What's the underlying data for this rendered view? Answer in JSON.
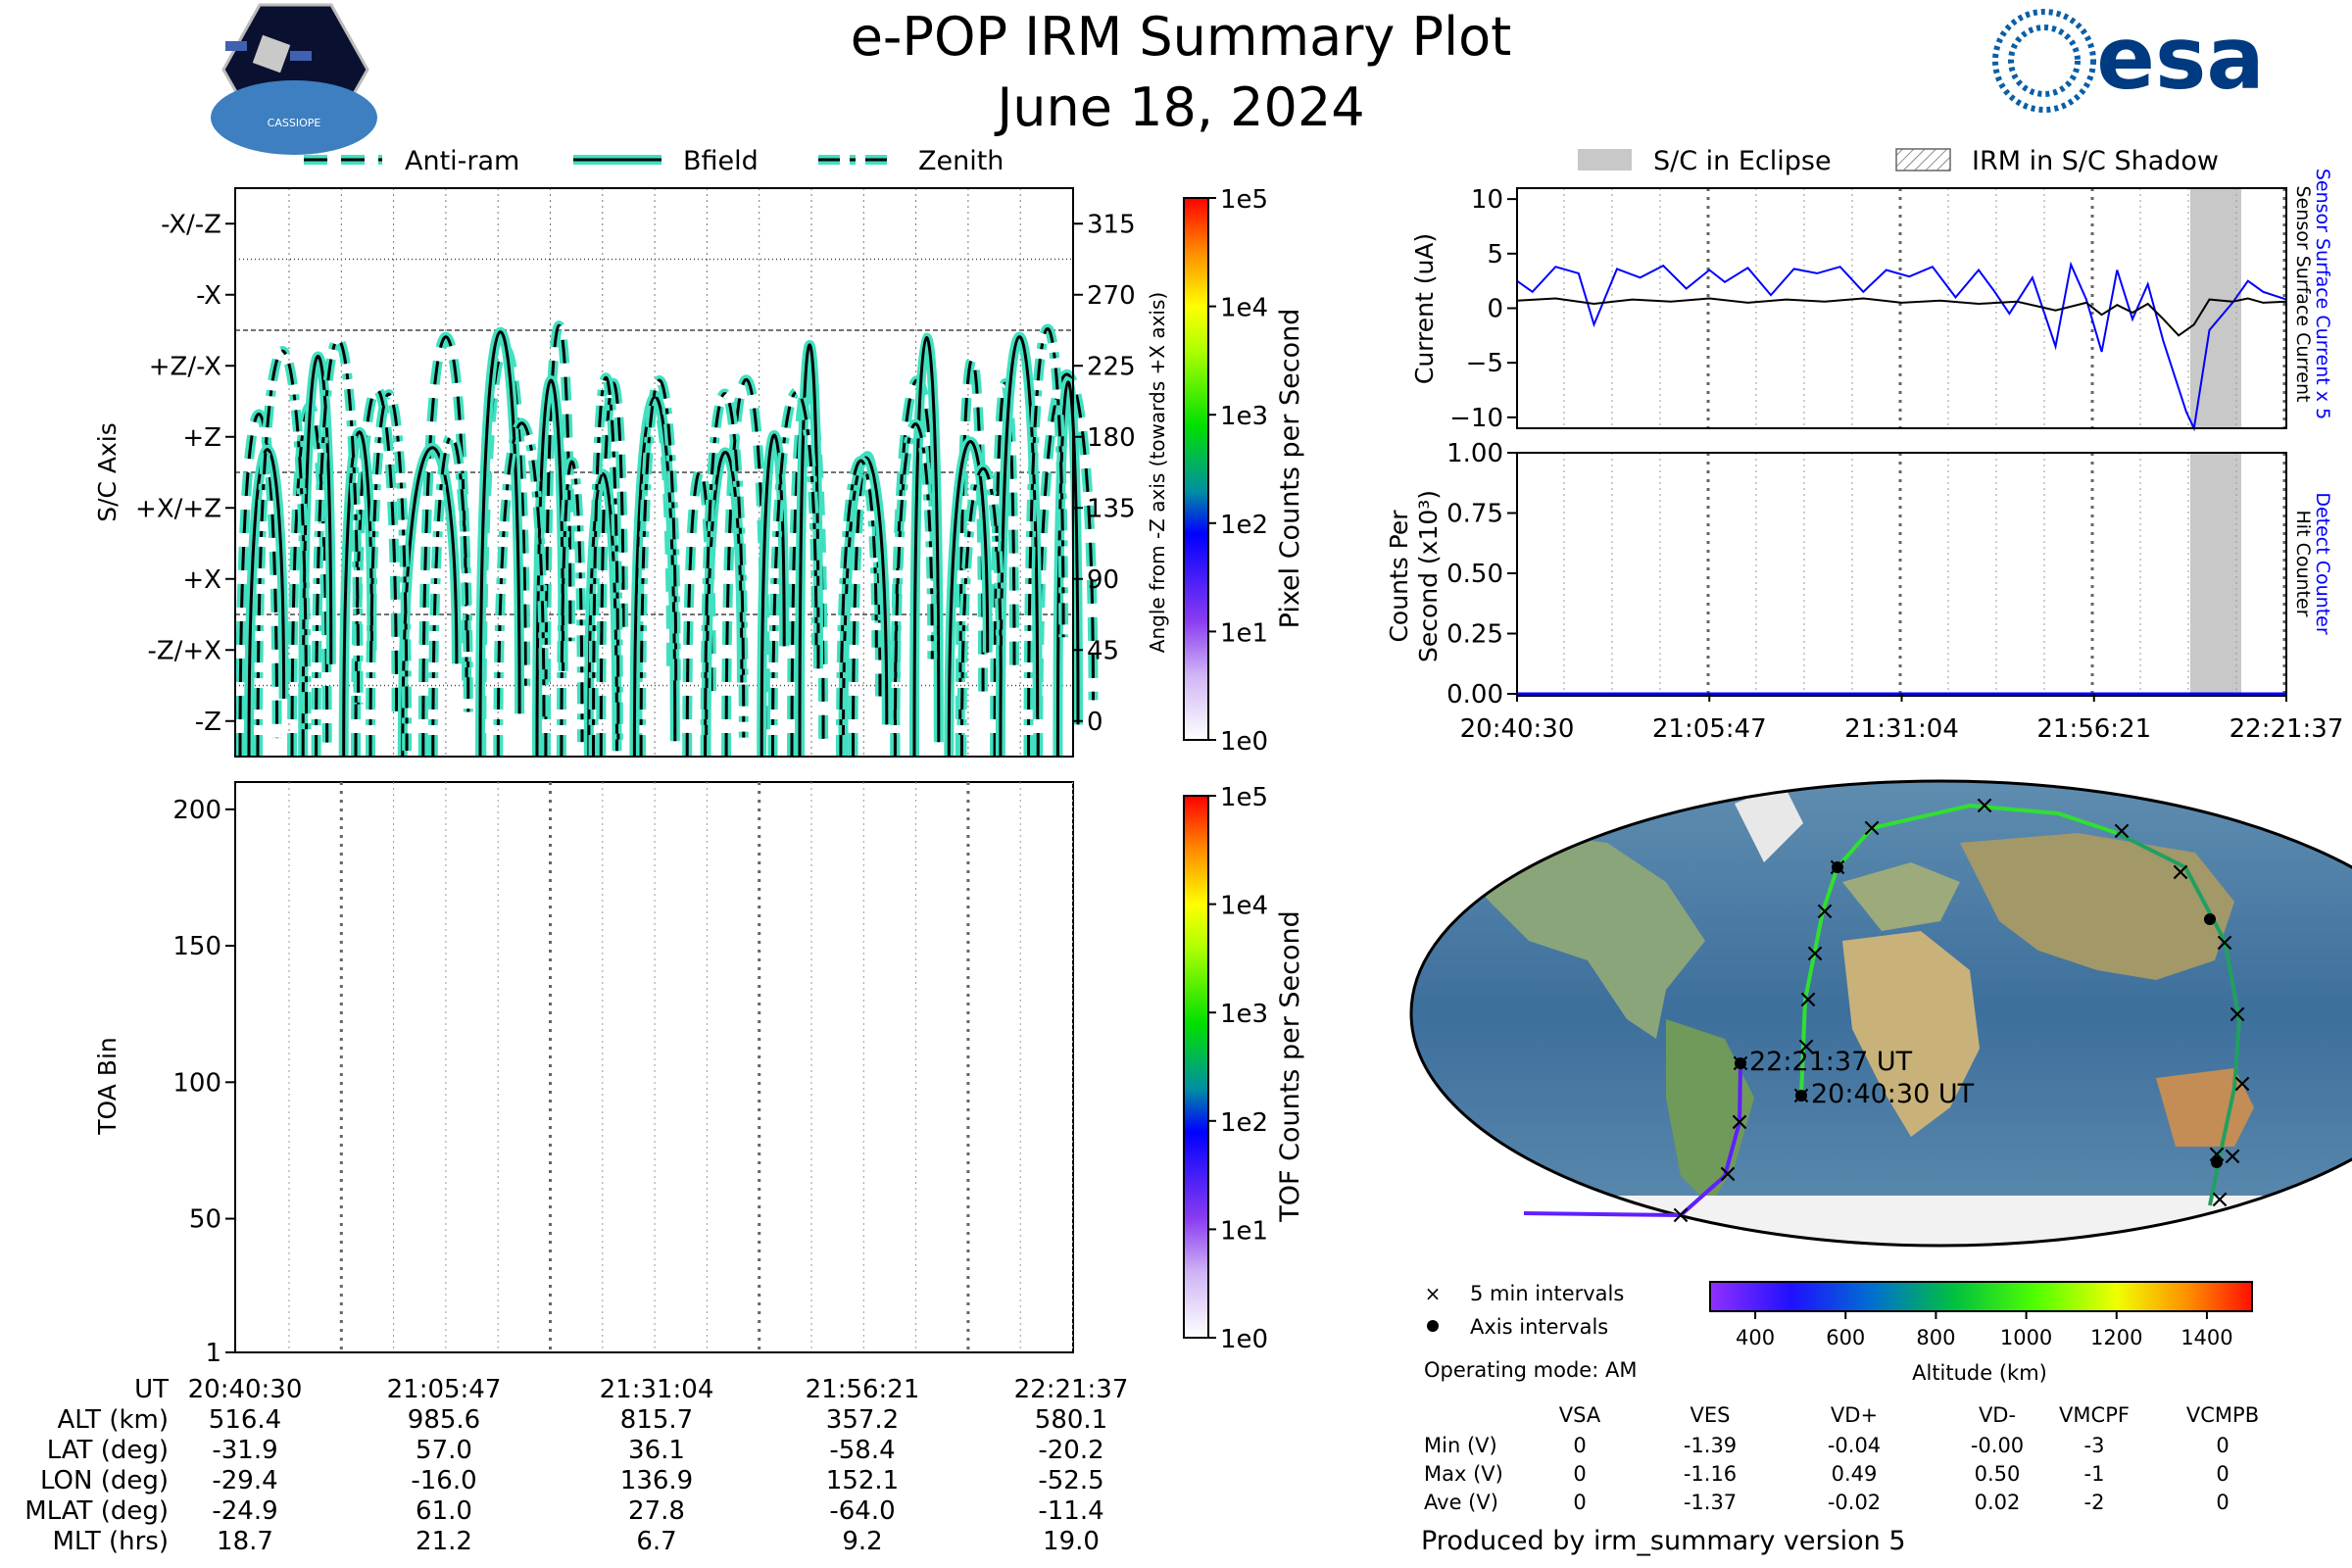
{
  "header": {
    "title": "e-POP IRM Summary Plot",
    "date": "June 18, 2024",
    "left_logo_text": "CASSIOPE",
    "right_logo_text": "esa"
  },
  "left_legend": [
    "Anti-ram",
    "Bfield",
    "Zenith"
  ],
  "right_legend": [
    "S/C in Eclipse",
    "IRM in S/C Shadow"
  ],
  "panel_axis": {
    "ylabel": "S/C Axis",
    "y_ticks": [
      "-X/-Z",
      "-X",
      "+Z/-X",
      "+Z",
      "+X/+Z",
      "+X",
      "-Z/+X",
      "-Z"
    ],
    "right_ylabel": "Angle from -Z axis (towards +X axis)",
    "right_ticks": [
      "315",
      "270",
      "225",
      "180",
      "135",
      "90",
      "45",
      "0"
    ],
    "colorbar_label": "Pixel Counts per Second",
    "colorbar_ticks": [
      "1e5",
      "1e4",
      "1e3",
      "1e2",
      "1e1",
      "1e0"
    ]
  },
  "panel_toa": {
    "ylabel": "TOA Bin",
    "y_ticks": [
      "200",
      "150",
      "100",
      "50",
      "1"
    ],
    "colorbar_label": "TOF Counts per Second",
    "colorbar_ticks": [
      "1e5",
      "1e4",
      "1e3",
      "1e2",
      "1e1",
      "1e0"
    ]
  },
  "panel_current": {
    "ylabel": "Current (uA)",
    "y_ticks": [
      "10",
      "5",
      "0",
      "−5",
      "−10"
    ],
    "right_label_blue": "Sensor Surface Current x 5",
    "right_label_black": "Sensor Surface Current"
  },
  "panel_counts": {
    "ylabel_line1": "Counts Per",
    "ylabel_line2": "Second (x10³)",
    "y_ticks": [
      "1.00",
      "0.75",
      "0.50",
      "0.25",
      "0.00"
    ],
    "right_label_blue": "Detect Counter",
    "right_label_black": "Hit Counter",
    "x_ticks": [
      "20:40:30",
      "21:05:47",
      "21:31:04",
      "21:56:21",
      "22:21:37"
    ]
  },
  "ephemeris_table": {
    "rows": [
      {
        "label": "UT",
        "values": [
          "20:40:30",
          "21:05:47",
          "21:31:04",
          "21:56:21",
          "22:21:37"
        ]
      },
      {
        "label": "ALT (km)",
        "values": [
          "516.4",
          "985.6",
          "815.7",
          "357.2",
          "580.1"
        ]
      },
      {
        "label": "LAT (deg)",
        "values": [
          "-31.9",
          "57.0",
          "36.1",
          "-58.4",
          "-20.2"
        ]
      },
      {
        "label": "LON (deg)",
        "values": [
          "-29.4",
          "-16.0",
          "136.9",
          "152.1",
          "-52.5"
        ]
      },
      {
        "label": "MLAT (deg)",
        "values": [
          "-24.9",
          "61.0",
          "27.8",
          "-64.0",
          "-11.4"
        ]
      },
      {
        "label": "MLT (hrs)",
        "values": [
          "18.7",
          "21.2",
          "6.7",
          "9.2",
          "19.0"
        ]
      }
    ]
  },
  "map": {
    "end_label": "22:21:37 UT",
    "start_label": "20:40:30 UT",
    "legend_5min": "5 min intervals",
    "legend_axis": "Axis intervals",
    "altitude_colorbar_label": "Altitude (km)",
    "altitude_ticks": [
      "400",
      "600",
      "800",
      "1000",
      "1200",
      "1400"
    ]
  },
  "operating_mode": "Operating mode: AM",
  "voltage_table": {
    "headers": [
      "VSA",
      "VES",
      "VD+",
      "VD-",
      "VMCPF",
      "VCMPB"
    ],
    "rows": [
      {
        "label": "Min (V)",
        "values": [
          "0",
          "-1.39",
          "-0.04",
          "-0.00",
          "-3",
          "0"
        ]
      },
      {
        "label": "Max (V)",
        "values": [
          "0",
          "-1.16",
          "0.49",
          "0.50",
          "-1",
          "0"
        ]
      },
      {
        "label": "Ave (V)",
        "values": [
          "0",
          "-1.37",
          "-0.02",
          "0.02",
          "-2",
          "0"
        ]
      }
    ]
  },
  "footer": "Produced by irm_summary version 5",
  "colors": {
    "trace_fill": "#40e0c0",
    "current_blue": "#0000ff",
    "eclipse_gray": "#c8c8c8"
  },
  "chart_data": [
    {
      "type": "line",
      "title": "",
      "xlabel": "UT",
      "ylabel": "S/C Axis",
      "x_ticks": [
        "20:40:30",
        "21:05:47",
        "21:31:04",
        "21:56:21",
        "22:21:37"
      ],
      "ylim": [
        -22.5,
        337.5
      ],
      "series": [
        {
          "name": "Anti-ram"
        },
        {
          "name": "Bfield"
        },
        {
          "name": "Zenith"
        }
      ]
    },
    {
      "type": "heatmap",
      "title": "",
      "xlabel": "UT",
      "ylabel": "TOA Bin",
      "ylim": [
        1,
        210
      ],
      "values": []
    },
    {
      "type": "line",
      "title": "",
      "ylabel": "Current (uA)",
      "ylim": [
        -11,
        11
      ],
      "series": [
        {
          "name": "Sensor Surface Current x 5",
          "x_frac": [
            0,
            0.02,
            0.05,
            0.08,
            0.1,
            0.13,
            0.16,
            0.19,
            0.22,
            0.25,
            0.27,
            0.3,
            0.33,
            0.36,
            0.39,
            0.42,
            0.45,
            0.48,
            0.51,
            0.54,
            0.57,
            0.6,
            0.62,
            0.64,
            0.67,
            0.7,
            0.72,
            0.74,
            0.76,
            0.78,
            0.8,
            0.82,
            0.84,
            0.87,
            0.88,
            0.9,
            0.93,
            0.95,
            0.97,
            1.0
          ],
          "values": [
            2.5,
            1.5,
            3.8,
            3.2,
            -1.5,
            3.6,
            2.8,
            3.9,
            1.8,
            3.5,
            2.4,
            3.7,
            1.2,
            3.6,
            3.2,
            3.8,
            1.5,
            3.5,
            2.9,
            3.8,
            1.0,
            3.5,
            1.6,
            -0.5,
            2.8,
            -3.5,
            4.0,
            0.8,
            -4.0,
            3.5,
            -1.0,
            2.2,
            -3.0,
            -9.5,
            -11,
            -2,
            0.5,
            2.5,
            1.5,
            0.8
          ]
        },
        {
          "name": "Sensor Surface Current",
          "x_frac": [
            0,
            0.05,
            0.1,
            0.15,
            0.2,
            0.25,
            0.3,
            0.35,
            0.4,
            0.45,
            0.5,
            0.55,
            0.6,
            0.65,
            0.7,
            0.74,
            0.76,
            0.78,
            0.8,
            0.82,
            0.84,
            0.86,
            0.88,
            0.9,
            0.93,
            0.95,
            0.97,
            1.0
          ],
          "values": [
            0.7,
            0.9,
            0.4,
            0.8,
            0.6,
            0.9,
            0.5,
            0.8,
            0.6,
            0.9,
            0.5,
            0.7,
            0.4,
            0.6,
            -0.2,
            0.5,
            -0.6,
            0.3,
            -0.4,
            0.4,
            -1.0,
            -2.5,
            -1.5,
            0.8,
            0.6,
            0.9,
            0.5,
            0.6
          ]
        }
      ]
    },
    {
      "type": "line",
      "title": "",
      "ylabel": "Counts Per Second (x10³)",
      "ylim": [
        0,
        1
      ],
      "series": [
        {
          "name": "Detect Counter",
          "values": [
            0,
            0
          ]
        },
        {
          "name": "Hit Counter",
          "values": [
            0,
            0
          ]
        }
      ]
    }
  ]
}
